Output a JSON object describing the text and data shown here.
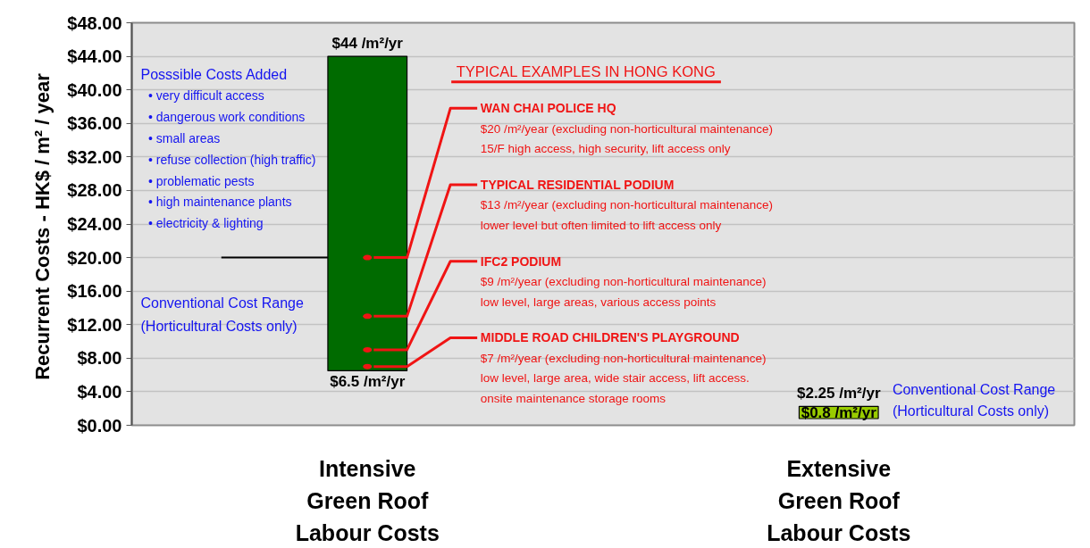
{
  "chart_data": {
    "type": "bar",
    "categories": [
      "Intensive\nGreen Roof\nLabour Costs",
      "Extensive\nGreen Roof\nLabour Costs"
    ],
    "base": [
      6.5,
      0.8
    ],
    "values": [
      37.5,
      1.45
    ],
    "colors": [
      "#006b00",
      "#99cc00"
    ],
    "series": [
      {
        "type": "scatter",
        "color": "#f01414",
        "x": [
          "Intensive\nGreen Roof\nLabour Costs",
          "Intensive\nGreen Roof\nLabour Costs",
          "Intensive\nGreen Roof\nLabour Costs",
          "Intensive\nGreen Roof\nLabour Costs"
        ],
        "values": [
          20,
          13,
          9,
          7
        ]
      }
    ],
    "ylabel": "Recurrent Costs -  HK$ / m² / year",
    "ylim": [
      0,
      48
    ],
    "yticks": [
      {
        "value": 0,
        "label": "$0.00"
      },
      {
        "value": 4,
        "label": "$4.00"
      },
      {
        "value": 8,
        "label": "$8.00"
      },
      {
        "value": 12,
        "label": "$12.00"
      },
      {
        "value": 16,
        "label": "$16.00"
      },
      {
        "value": 20,
        "label": "$20.00"
      },
      {
        "value": 24,
        "label": "$24.00"
      },
      {
        "value": 28,
        "label": "$28.00"
      },
      {
        "value": 32,
        "label": "$32.00"
      },
      {
        "value": 36,
        "label": "$36.00"
      },
      {
        "value": 40,
        "label": "$40.00"
      },
      {
        "value": 44,
        "label": "$44.00"
      },
      {
        "value": 48,
        "label": "$48.00"
      }
    ],
    "grid": "y",
    "ref_lines": [
      {
        "axis": "y",
        "value": 20,
        "color": "#000000"
      }
    ],
    "annotations": [
      "Posssible Costs Added\n• very difficult access\n• dangerous work conditions\n• small areas\n• refuse collection (high traffic)\n• problematic pests\n• high maintenance plants\n• electricity & lighting",
      "Conventional Cost Range\n(Horticultural Costs only)",
      "TYPICAL EXAMPLES IN HONG KONG",
      "Conventional Cost Range\n(Horticultural Costs only)",
      {
        "text": "WAN CHAI POLICE HQ\n$20 /m²/year (excluding non-horticultural maintenance)\n15/F high access, high security, lift access only",
        "x": "Intensive\nGreen Roof\nLabour Costs",
        "y": 20
      },
      {
        "text": "TYPICAL RESIDENTIAL PODIUM\n$13 /m²/year (excluding non-horticultural maintenance)\nlower level but often limited to lift access only",
        "x": "Intensive\nGreen Roof\nLabour Costs",
        "y": 13
      },
      {
        "text": "IFC2 PODIUM\n$9 /m²/year (excluding non-horticultural maintenance)\nlow level, large areas, various access points",
        "x": "Intensive\nGreen Roof\nLabour Costs",
        "y": 9
      },
      {
        "text": "MIDDLE ROAD CHILDREN'S PLAYGROUND\n$7 /m²/year (excluding non-horticultural maintenance)\nlow level, large area, wide stair access, lift access.\nonsite maintenance storage rooms",
        "x": "Intensive\nGreen Roof\nLabour Costs",
        "y": 7
      },
      {
        "text": "$44 /m²/yr",
        "x": "Intensive\nGreen Roof\nLabour Costs",
        "y": 44
      },
      {
        "text": "$6.5 /m²/yr",
        "x": "Intensive\nGreen Roof\nLabour Costs",
        "y": 6.5
      },
      {
        "text": "$2.25 /m²/yr",
        "x": "Extensive\nGreen Roof\nLabour Costs",
        "y": 2.25
      },
      {
        "text": "$0.8 /m²/yr",
        "x": "Extensive\nGreen Roof\nLabour Costs",
        "y": 0.8
      }
    ]
  }
}
